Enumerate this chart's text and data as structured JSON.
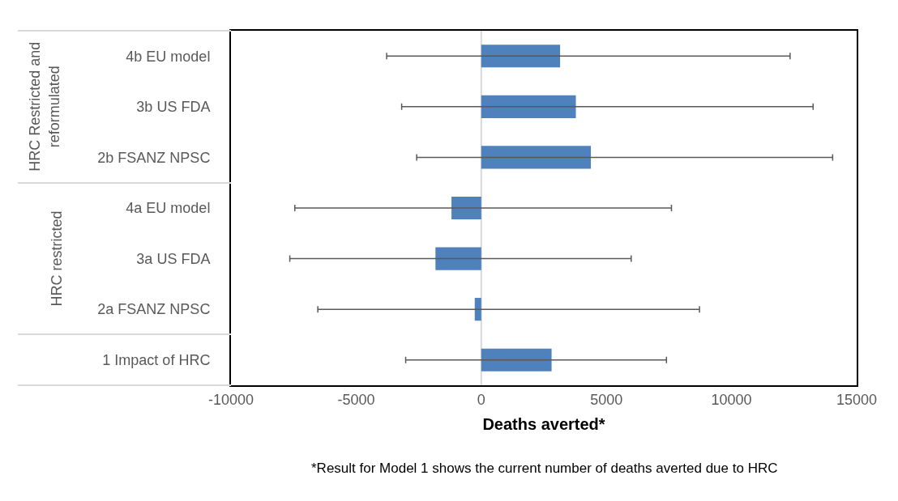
{
  "chart_data": {
    "type": "bar",
    "orientation": "horizontal",
    "xlabel": "Deaths averted*",
    "categories": [
      "4b EU model",
      "3b US FDA",
      "2b FSANZ NPSC",
      "4a EU model",
      "3a US FDA",
      "2a FSANZ NPSC",
      "1 Impact of HRC"
    ],
    "values": [
      3150,
      3780,
      4380,
      -1190,
      -1830,
      -260,
      2810
    ],
    "errors": [
      [
        -3780,
        12340
      ],
      [
        -3180,
        13260
      ],
      [
        -2580,
        14040
      ],
      [
        -7450,
        7600
      ],
      [
        -7650,
        5990
      ],
      [
        -6530,
        8720
      ],
      [
        -3020,
        7400
      ]
    ],
    "color": "#4f81bd",
    "xlim": [
      -10000,
      15000
    ],
    "xticks": [
      -10000,
      -5000,
      0,
      5000,
      10000,
      15000
    ],
    "ref_lines": [
      {
        "axis": "x",
        "value": 0,
        "color": "#d9d9d9"
      }
    ],
    "annotations": [
      "HRC Restricted and reformulated",
      "HRC restricted",
      "*Result for Model 1 shows the current number of deaths averted due to HRC"
    ]
  }
}
